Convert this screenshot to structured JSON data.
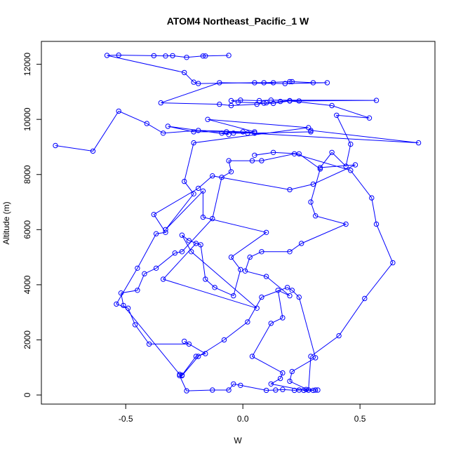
{
  "chart_data": {
    "type": "line",
    "title": "ATOM4 Northeast_Pacific_1 W",
    "xlabel": "W",
    "ylabel": "Altitude (m)",
    "xlim": [
      -0.86,
      0.82
    ],
    "ylim": [
      -330,
      12830
    ],
    "x_ticks": [
      -0.5,
      0.0,
      0.5
    ],
    "x_tick_labels": [
      "-0.5",
      "0.0",
      "0.5"
    ],
    "y_ticks": [
      0,
      2000,
      4000,
      6000,
      8000,
      10000,
      12000
    ],
    "y_tick_labels": [
      "0",
      "2000",
      "4000",
      "6000",
      "8000",
      "10000",
      "12000"
    ],
    "grid": false,
    "series_color": "#0000ff",
    "marker": "open-circle",
    "series": [
      {
        "points": [
          [
            -0.06,
            12320
          ],
          [
            -0.16,
            12300
          ],
          [
            -0.17,
            12300
          ],
          [
            -0.24,
            12250
          ],
          [
            -0.3,
            12310
          ],
          [
            -0.33,
            12300
          ],
          [
            -0.38,
            12310
          ],
          [
            -0.53,
            12330
          ],
          [
            -0.58,
            12320
          ],
          [
            -0.25,
            11700
          ],
          [
            -0.21,
            11350
          ],
          [
            -0.19,
            11300
          ],
          [
            0.05,
            11330
          ],
          [
            0.13,
            11330
          ],
          [
            0.09,
            11330
          ],
          [
            0.2,
            11370
          ],
          [
            0.21,
            11370
          ],
          [
            0.3,
            11330
          ],
          [
            0.36,
            11330
          ],
          [
            0.18,
            11300
          ],
          [
            -0.1,
            11330
          ],
          [
            -0.35,
            10600
          ],
          [
            -0.1,
            10550
          ],
          [
            -0.05,
            10500
          ],
          [
            0.06,
            10550
          ],
          [
            0.1,
            10600
          ],
          [
            0.16,
            10650
          ],
          [
            0.2,
            10680
          ],
          [
            0.24,
            10670
          ],
          [
            0.57,
            10690
          ],
          [
            0.12,
            10700
          ],
          [
            0.07,
            10680
          ],
          [
            -0.01,
            10700
          ],
          [
            -0.05,
            10680
          ],
          [
            -0.02,
            10620
          ],
          [
            0.09,
            10590
          ],
          [
            0.13,
            10580
          ],
          [
            0.2,
            10670
          ],
          [
            0.38,
            10500
          ],
          [
            0.54,
            10050
          ],
          [
            0.4,
            10150
          ],
          [
            0.46,
            9100
          ],
          [
            0.44,
            8300
          ],
          [
            0.38,
            8800
          ],
          [
            0.33,
            8250
          ],
          [
            0.48,
            8350
          ],
          [
            0.3,
            7650
          ],
          [
            0.2,
            7450
          ],
          [
            -0.13,
            7950
          ],
          [
            -0.19,
            7500
          ],
          [
            -0.38,
            6550
          ],
          [
            -0.33,
            5900
          ],
          [
            -0.37,
            5850
          ],
          [
            -0.45,
            4600
          ],
          [
            -0.54,
            3300
          ],
          [
            -0.49,
            3150
          ],
          [
            -0.46,
            2550
          ],
          [
            -0.4,
            1850
          ],
          [
            -0.23,
            1850
          ],
          [
            -0.25,
            1950
          ],
          [
            -0.16,
            1500
          ],
          [
            -0.2,
            1400
          ],
          [
            -0.26,
            720
          ],
          [
            -0.27,
            700
          ],
          [
            -0.24,
            150
          ],
          [
            -0.13,
            180
          ],
          [
            -0.06,
            180
          ],
          [
            -0.04,
            400
          ],
          [
            -0.01,
            350
          ],
          [
            0.1,
            170
          ],
          [
            0.14,
            180
          ],
          [
            0.17,
            200
          ],
          [
            0.22,
            170
          ],
          [
            0.24,
            180
          ],
          [
            0.27,
            200
          ],
          [
            0.31,
            180
          ],
          [
            0.28,
            180
          ],
          [
            0.29,
            1400
          ],
          [
            0.41,
            2150
          ],
          [
            0.52,
            3500
          ],
          [
            0.64,
            4800
          ],
          [
            0.57,
            6200
          ],
          [
            0.55,
            7150
          ],
          [
            0.46,
            8150
          ],
          [
            0.22,
            8750
          ],
          [
            0.08,
            8500
          ],
          [
            0.04,
            8500
          ],
          [
            -0.06,
            8500
          ],
          [
            -0.05,
            8100
          ],
          [
            -0.09,
            7900
          ],
          [
            -0.13,
            6400
          ],
          [
            -0.26,
            5200
          ],
          [
            -0.29,
            5150
          ],
          [
            -0.37,
            4600
          ],
          [
            -0.42,
            4400
          ],
          [
            -0.45,
            3800
          ],
          [
            -0.52,
            3700
          ],
          [
            -0.51,
            3250
          ],
          [
            -0.27,
            750
          ],
          [
            -0.26,
            700
          ],
          [
            -0.19,
            1400
          ],
          [
            -0.08,
            2000
          ],
          [
            0.02,
            2650
          ],
          [
            0.08,
            3550
          ],
          [
            0.19,
            3900
          ],
          [
            0.21,
            3800
          ],
          [
            0.24,
            3550
          ],
          [
            0.31,
            1350
          ],
          [
            0.21,
            850
          ],
          [
            0.2,
            500
          ],
          [
            0.28,
            180
          ],
          [
            0.32,
            180
          ]
        ]
      },
      {
        "points": [
          [
            -0.8,
            9050
          ],
          [
            -0.64,
            8850
          ],
          [
            -0.53,
            10300
          ],
          [
            -0.41,
            9850
          ],
          [
            -0.34,
            9500
          ],
          [
            -0.19,
            9600
          ],
          [
            0.0,
            9550
          ],
          [
            0.05,
            9500
          ],
          [
            0.29,
            9550
          ],
          [
            0.29,
            9600
          ],
          [
            0.75,
            9150
          ],
          [
            -0.07,
            9550
          ],
          [
            -0.21,
            9550
          ],
          [
            -0.32,
            9750
          ],
          [
            -0.06,
            9450
          ],
          [
            -0.09,
            9500
          ],
          [
            0.02,
            9500
          ],
          [
            -0.04,
            9500
          ],
          [
            0.05,
            9550
          ],
          [
            -0.15,
            10000
          ],
          [
            0.28,
            9700
          ],
          [
            -0.21,
            9150
          ],
          [
            -0.25,
            7750
          ],
          [
            -0.21,
            7300
          ],
          [
            -0.33,
            6000
          ],
          [
            -0.17,
            7400
          ],
          [
            -0.17,
            6450
          ],
          [
            0.1,
            5900
          ],
          [
            -0.05,
            5000
          ],
          [
            -0.01,
            4550
          ],
          [
            -0.04,
            3600
          ],
          [
            -0.12,
            3900
          ],
          [
            -0.16,
            4200
          ],
          [
            -0.18,
            5450
          ],
          [
            -0.23,
            5600
          ],
          [
            -0.26,
            5800
          ],
          [
            -0.22,
            5200
          ],
          [
            0.06,
            3150
          ],
          [
            -0.34,
            4200
          ],
          [
            -0.2,
            5500
          ]
        ]
      },
      {
        "points": [
          [
            0.05,
            8700
          ],
          [
            0.13,
            8800
          ],
          [
            0.24,
            8750
          ],
          [
            0.33,
            8200
          ],
          [
            0.29,
            7000
          ],
          [
            0.31,
            6500
          ],
          [
            0.44,
            6200
          ],
          [
            0.25,
            5500
          ],
          [
            0.2,
            5200
          ],
          [
            0.08,
            5200
          ],
          [
            0.03,
            5000
          ],
          [
            0.01,
            4500
          ],
          [
            0.1,
            4300
          ],
          [
            0.2,
            3600
          ],
          [
            0.15,
            3800
          ],
          [
            0.17,
            2800
          ],
          [
            0.12,
            2600
          ],
          [
            0.04,
            1400
          ],
          [
            0.17,
            800
          ],
          [
            0.16,
            600
          ],
          [
            0.12,
            400
          ],
          [
            0.26,
            170
          ],
          [
            0.3,
            170
          ]
        ]
      }
    ]
  }
}
